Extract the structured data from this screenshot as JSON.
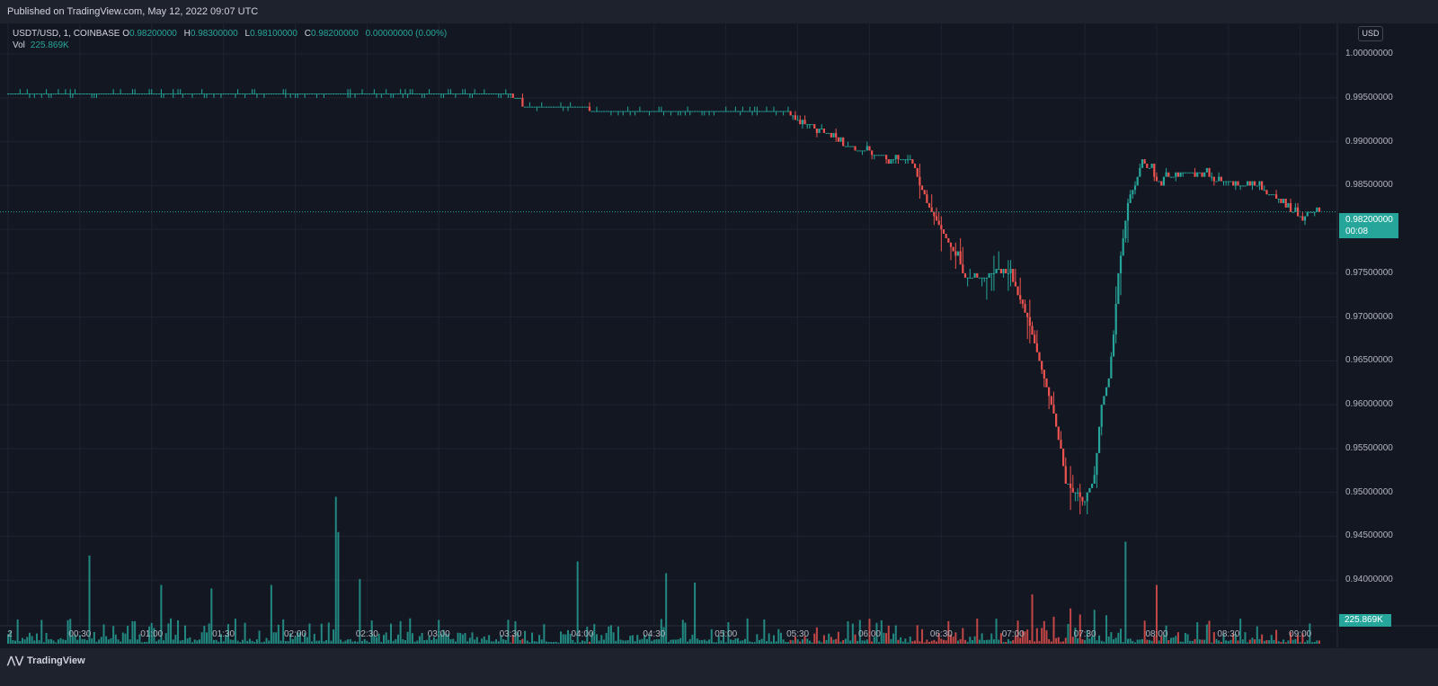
{
  "header": {
    "published": "Published on TradingView.com, May 12, 2022 09:07 UTC"
  },
  "legend": {
    "symbol": "USDT/USD, 1, COINBASE",
    "o_key": "O",
    "o_val": "0.98200000",
    "h_key": "H",
    "h_val": "0.98300000",
    "l_key": "L",
    "l_val": "0.98100000",
    "c_key": "C",
    "c_val": "0.98200000",
    "change": "0.00000000 (0.00%)",
    "vol_key": "Vol",
    "vol_val": "225.869K"
  },
  "currency": "USD",
  "current": {
    "price": "0.98200000",
    "countdown": "00:08",
    "volume": "225.869K"
  },
  "footer": {
    "brand": "TradingView",
    "logo": "tradingview-logo-icon"
  },
  "colors": {
    "up": "#26a69a",
    "down": "#ef5350",
    "background": "#131722",
    "grid": "#1f2330"
  },
  "chart_data": {
    "type": "candlestick",
    "title": "USDT/USD, 1, COINBASE",
    "y_range": [
      0.935,
      1.0035
    ],
    "y_ticks": [
      "1.00000000",
      "0.99500000",
      "0.99000000",
      "0.98500000",
      "0.98000000",
      "0.97500000",
      "0.97000000",
      "0.96500000",
      "0.96000000",
      "0.95500000",
      "0.95000000",
      "0.94500000",
      "0.94000000"
    ],
    "y_tick_values": [
      1.0,
      0.995,
      0.99,
      0.985,
      0.98,
      0.975,
      0.97,
      0.965,
      0.96,
      0.955,
      0.95,
      0.945,
      0.94
    ],
    "x_ticks": [
      "2",
      "00:30",
      "01:00",
      "01:30",
      "02:00",
      "02:30",
      "03:00",
      "03:30",
      "04:00",
      "04:30",
      "05:00",
      "05:30",
      "06:00",
      "06:30",
      "07:00",
      "07:30",
      "08:00",
      "08:30",
      "09:00"
    ],
    "x_tick_minutes": [
      0,
      30,
      60,
      90,
      120,
      150,
      180,
      210,
      240,
      270,
      300,
      330,
      360,
      390,
      420,
      450,
      480,
      510,
      540
    ],
    "x_range_minutes": [
      0,
      548
    ],
    "price_path": [
      [
        0,
        0.9955
      ],
      [
        60,
        0.9955
      ],
      [
        140,
        0.9955
      ],
      [
        210,
        0.9955
      ],
      [
        215,
        0.994
      ],
      [
        240,
        0.994
      ],
      [
        245,
        0.9935
      ],
      [
        300,
        0.9935
      ],
      [
        325,
        0.9935
      ],
      [
        330,
        0.9925
      ],
      [
        340,
        0.9915
      ],
      [
        350,
        0.9895
      ],
      [
        370,
        0.988
      ],
      [
        378,
        0.988
      ],
      [
        380,
        0.986
      ],
      [
        384,
        0.983
      ],
      [
        390,
        0.98
      ],
      [
        396,
        0.977
      ],
      [
        400,
        0.9745
      ],
      [
        410,
        0.9745
      ],
      [
        415,
        0.976
      ],
      [
        420,
        0.974
      ],
      [
        426,
        0.97
      ],
      [
        432,
        0.964
      ],
      [
        436,
        0.96
      ],
      [
        440,
        0.955
      ],
      [
        442,
        0.951
      ],
      [
        446,
        0.95
      ],
      [
        450,
        0.949
      ],
      [
        454,
        0.952
      ],
      [
        457,
        0.96
      ],
      [
        460,
        0.963
      ],
      [
        462,
        0.968
      ],
      [
        464,
        0.975
      ],
      [
        466,
        0.979
      ],
      [
        468,
        0.983
      ],
      [
        472,
        0.986
      ],
      [
        474,
        0.988
      ],
      [
        480,
        0.9855
      ],
      [
        490,
        0.9865
      ],
      [
        500,
        0.9865
      ],
      [
        505,
        0.9855
      ],
      [
        520,
        0.985
      ],
      [
        528,
        0.984
      ],
      [
        533,
        0.983
      ],
      [
        538,
        0.9815
      ],
      [
        548,
        0.982
      ]
    ],
    "volume_spikes": [
      [
        34,
        150
      ],
      [
        64,
        100
      ],
      [
        85,
        94
      ],
      [
        110,
        100
      ],
      [
        137,
        250
      ],
      [
        138,
        190
      ],
      [
        147,
        110
      ],
      [
        238,
        140
      ],
      [
        275,
        120
      ],
      [
        287,
        104
      ],
      [
        480,
        100
      ],
      [
        467,
        124
      ],
      [
        428,
        60
      ]
    ],
    "volume_scale_max": 260,
    "volume_current": "225.869K"
  }
}
